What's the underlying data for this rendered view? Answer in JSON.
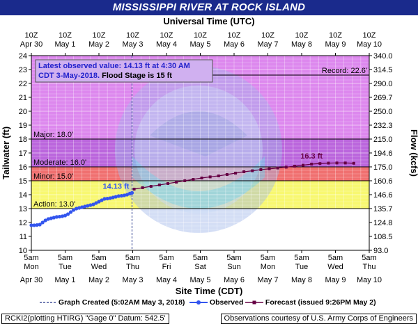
{
  "title": "MISSISSIPPI RIVER AT ROCK ISLAND",
  "top_axis_title": "Universal Time (UTC)",
  "bottom_axis_title": "Site Time (CDT)",
  "left_axis_title": "Tailwater (ft)",
  "right_axis_title": "Flow (kcfs)",
  "colors": {
    "title_bg": "#1a2a8c",
    "record": "#dd88ee",
    "major": "#bb66dd",
    "moderate": "#f07070",
    "minor": "#f8a050",
    "action": "#f8f870",
    "observed": "#3355ee",
    "forecast": "#660044",
    "info_text": "#2222cc"
  },
  "info_box": {
    "line1": "Latest observed value: 14.13 ft at 4:30 AM",
    "line2_blue": "CDT 3-May-2018.",
    "line2_black": " Flood Stage is 15 ft"
  },
  "chart_data": {
    "type": "line",
    "x_unit": "hours since 5am CDT Apr 30",
    "xlim": [
      0,
      240
    ],
    "ylim": [
      10,
      24
    ],
    "y_ticks": [
      10,
      11,
      12,
      13,
      14,
      15,
      16,
      17,
      18,
      19,
      20,
      21,
      22,
      23,
      24
    ],
    "flow_ticks": [
      "93.0",
      "108.5",
      "124.8",
      "135.7",
      "146.6",
      "160.6",
      "175.0",
      "194.6",
      "215.0",
      "232.3",
      "250.0",
      "269.7",
      "290.0",
      "314.5",
      "340.0"
    ],
    "bottom_ticks": [
      {
        "x": 0,
        "time": "5am",
        "day": "Mon",
        "date": "Apr 30"
      },
      {
        "x": 24,
        "time": "5am",
        "day": "Tue",
        "date": "May 1"
      },
      {
        "x": 48,
        "time": "5am",
        "day": "Wed",
        "date": "May 2"
      },
      {
        "x": 72,
        "time": "5am",
        "day": "Thu",
        "date": "May 3"
      },
      {
        "x": 96,
        "time": "5am",
        "day": "Fri",
        "date": "May 4"
      },
      {
        "x": 120,
        "time": "5am",
        "day": "Sat",
        "date": "May 5"
      },
      {
        "x": 144,
        "time": "5am",
        "day": "Sun",
        "date": "May 6"
      },
      {
        "x": 168,
        "time": "5am",
        "day": "Mon",
        "date": "May 7"
      },
      {
        "x": 192,
        "time": "5am",
        "day": "Tue",
        "date": "May 8"
      },
      {
        "x": 216,
        "time": "5am",
        "day": "Wed",
        "date": "May 9"
      },
      {
        "x": 240,
        "time": "5am",
        "day": "Thu",
        "date": "May 10"
      }
    ],
    "top_ticks": [
      {
        "x": 0,
        "time": "10Z",
        "date": "Apr 30"
      },
      {
        "x": 24,
        "time": "10Z",
        "date": "May 1"
      },
      {
        "x": 48,
        "time": "10Z",
        "date": "May 2"
      },
      {
        "x": 72,
        "time": "10Z",
        "date": "May 3"
      },
      {
        "x": 96,
        "time": "10Z",
        "date": "May 4"
      },
      {
        "x": 120,
        "time": "10Z",
        "date": "May 5"
      },
      {
        "x": 144,
        "time": "10Z",
        "date": "May 6"
      },
      {
        "x": 168,
        "time": "10Z",
        "date": "May 7"
      },
      {
        "x": 192,
        "time": "10Z",
        "date": "May 8"
      },
      {
        "x": 216,
        "time": "10Z",
        "date": "May 9"
      },
      {
        "x": 240,
        "time": "10Z",
        "date": "May 10"
      }
    ],
    "flood_categories": [
      {
        "name": "Record",
        "label": "Record: 22.6'",
        "value": 22.6,
        "color_key": "record"
      },
      {
        "name": "Major",
        "label": "Major: 18.0'",
        "value": 18.0,
        "color_key": "major"
      },
      {
        "name": "Moderate",
        "label": "Moderate: 16.0'",
        "value": 16.0,
        "color_key": "moderate"
      },
      {
        "name": "Minor",
        "label": "Minor: 15.0'",
        "value": 15.0,
        "color_key": "minor"
      },
      {
        "name": "Action",
        "label": "Action: 13.0'",
        "value": 13.0,
        "color_key": "action"
      }
    ],
    "graph_created_x": 71.5,
    "observed_label": "14.13 ft",
    "forecast_label": "16.3 ft",
    "series": [
      {
        "name": "Observed",
        "kind": "observed",
        "x": [
          0,
          2,
          4,
          6,
          8,
          10,
          12,
          14,
          16,
          18,
          20,
          22,
          24,
          26,
          28,
          30,
          32,
          34,
          36,
          38,
          40,
          42,
          44,
          46,
          48,
          50,
          52,
          54,
          56,
          58,
          60,
          62,
          64,
          66,
          68,
          70,
          71.5
        ],
        "y": [
          11.8,
          11.8,
          11.82,
          11.85,
          12.0,
          12.15,
          12.25,
          12.3,
          12.35,
          12.4,
          12.42,
          12.45,
          12.5,
          12.6,
          12.75,
          12.9,
          13.0,
          13.05,
          13.1,
          13.15,
          13.2,
          13.25,
          13.3,
          13.4,
          13.5,
          13.6,
          13.7,
          13.72,
          13.75,
          13.8,
          13.85,
          13.9,
          13.92,
          13.95,
          14.0,
          14.08,
          14.13
        ]
      },
      {
        "name": "Forecast (issued 9:26PM May 2)",
        "kind": "forecast",
        "x": [
          73,
          79,
          85,
          91,
          97,
          103,
          109,
          115,
          121,
          127,
          133,
          139,
          145,
          151,
          157,
          163,
          169,
          175,
          181,
          187,
          193,
          199,
          205,
          211,
          217,
          223,
          229
        ],
        "y": [
          14.4,
          14.5,
          14.6,
          14.7,
          14.8,
          14.9,
          15.0,
          15.1,
          15.2,
          15.28,
          15.35,
          15.45,
          15.55,
          15.65,
          15.72,
          15.8,
          15.86,
          15.92,
          15.98,
          16.05,
          16.12,
          16.2,
          16.24,
          16.27,
          16.28,
          16.28,
          16.26
        ]
      }
    ]
  },
  "legend": {
    "graph_created": "Graph Created (5:02AM May 3, 2018)",
    "observed": "Observed",
    "forecast": "Forecast (issued 9:26PM May 2)"
  },
  "footer": {
    "left": "RCKI2(plotting HTIRG) \"Gage 0\" Datum: 542.5'",
    "right": "Observations courtesy of U.S. Army Corps of Engineers"
  }
}
